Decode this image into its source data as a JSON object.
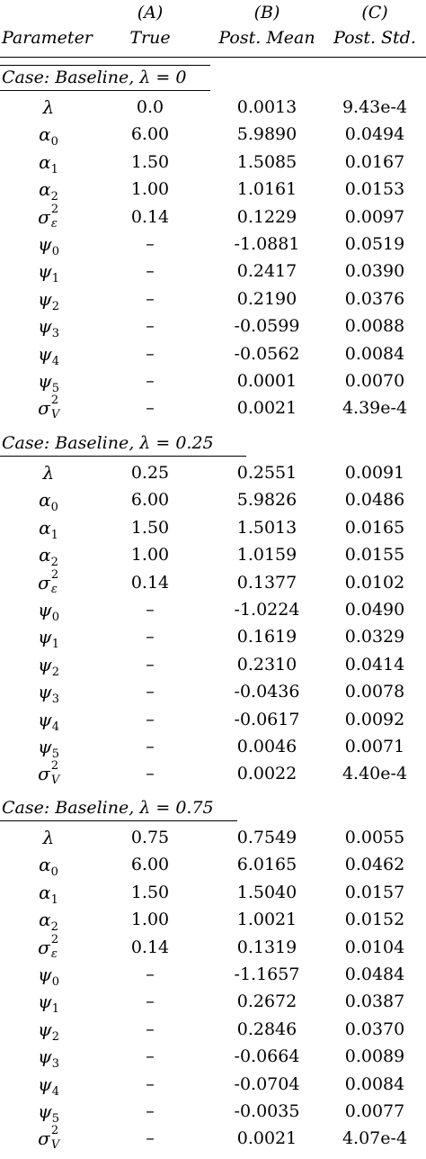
{
  "header": {
    "letters": [
      "(A)",
      "(B)",
      "(C)"
    ],
    "columns": [
      "Parameter",
      "True",
      "Post. Mean",
      "Post. Std."
    ]
  },
  "cases": [
    {
      "label": "Case: Baseline, λ = 0",
      "rows": [
        {
          "param": "λ",
          "true": "0.0",
          "mean": "0.0013",
          "std": "9.43e-4"
        },
        {
          "param": "α0",
          "true": "6.00",
          "mean": "5.9890",
          "std": "0.0494"
        },
        {
          "param": "α1",
          "true": "1.50",
          "mean": "1.5085",
          "std": "0.0167"
        },
        {
          "param": "α2",
          "true": "1.00",
          "mean": "1.0161",
          "std": "0.0153"
        },
        {
          "param": "σε2",
          "true": "0.14",
          "mean": "0.1229",
          "std": "0.0097"
        },
        {
          "param": "ψ0",
          "true": "–",
          "mean": "-1.0881",
          "std": "0.0519"
        },
        {
          "param": "ψ1",
          "true": "–",
          "mean": "0.2417",
          "std": "0.0390"
        },
        {
          "param": "ψ2",
          "true": "–",
          "mean": "0.2190",
          "std": "0.0376"
        },
        {
          "param": "ψ3",
          "true": "–",
          "mean": "-0.0599",
          "std": "0.0088"
        },
        {
          "param": "ψ4",
          "true": "–",
          "mean": "-0.0562",
          "std": "0.0084"
        },
        {
          "param": "ψ5",
          "true": "–",
          "mean": "0.0001",
          "std": "0.0070"
        },
        {
          "param": "σV2",
          "true": "–",
          "mean": "0.0021",
          "std": "4.39e-4"
        }
      ]
    },
    {
      "label": "Case: Baseline,  λ = 0.25",
      "rows": [
        {
          "param": "λ",
          "true": "0.25",
          "mean": "0.2551",
          "std": "0.0091"
        },
        {
          "param": "α0",
          "true": "6.00",
          "mean": "5.9826",
          "std": "0.0486"
        },
        {
          "param": "α1",
          "true": "1.50",
          "mean": "1.5013",
          "std": "0.0165"
        },
        {
          "param": "α2",
          "true": "1.00",
          "mean": "1.0159",
          "std": "0.0155"
        },
        {
          "param": "σε2",
          "true": "0.14",
          "mean": "0.1377",
          "std": "0.0102"
        },
        {
          "param": "ψ0",
          "true": "–",
          "mean": "-1.0224",
          "std": "0.0490"
        },
        {
          "param": "ψ1",
          "true": "–",
          "mean": "0.1619",
          "std": "0.0329"
        },
        {
          "param": "ψ2",
          "true": "–",
          "mean": "0.2310",
          "std": "0.0414"
        },
        {
          "param": "ψ3",
          "true": "–",
          "mean": "-0.0436",
          "std": "0.0078"
        },
        {
          "param": "ψ4",
          "true": "–",
          "mean": "-0.0617",
          "std": "0.0092"
        },
        {
          "param": "ψ5",
          "true": "–",
          "mean": "0.0046",
          "std": "0.0071"
        },
        {
          "param": "σV2",
          "true": "–",
          "mean": "0.0022",
          "std": "4.40e-4"
        }
      ]
    },
    {
      "label": "Case: Baseline, λ = 0.75",
      "rows": [
        {
          "param": "λ",
          "true": "0.75",
          "mean": "0.7549",
          "std": "0.0055"
        },
        {
          "param": "α0",
          "true": "6.00",
          "mean": "6.0165",
          "std": "0.0462"
        },
        {
          "param": "α1",
          "true": "1.50",
          "mean": "1.5040",
          "std": "0.0157"
        },
        {
          "param": "α2",
          "true": "1.00",
          "mean": "1.0021",
          "std": "0.0152"
        },
        {
          "param": "σε2",
          "true": "0.14",
          "mean": "0.1319",
          "std": "0.0104"
        },
        {
          "param": "ψ0",
          "true": "–",
          "mean": "-1.1657",
          "std": "0.0484"
        },
        {
          "param": "ψ1",
          "true": "–",
          "mean": "0.2672",
          "std": "0.0387"
        },
        {
          "param": "ψ2",
          "true": "–",
          "mean": "0.2846",
          "std": "0.0370"
        },
        {
          "param": "ψ3",
          "true": "–",
          "mean": "-0.0664",
          "std": "0.0089"
        },
        {
          "param": "ψ4",
          "true": "–",
          "mean": "-0.0704",
          "std": "0.0084"
        },
        {
          "param": "ψ5",
          "true": "–",
          "mean": "-0.0035",
          "std": "0.0077"
        },
        {
          "param": "σV2",
          "true": "–",
          "mean": "0.0021",
          "std": "4.07e-4"
        }
      ]
    }
  ]
}
